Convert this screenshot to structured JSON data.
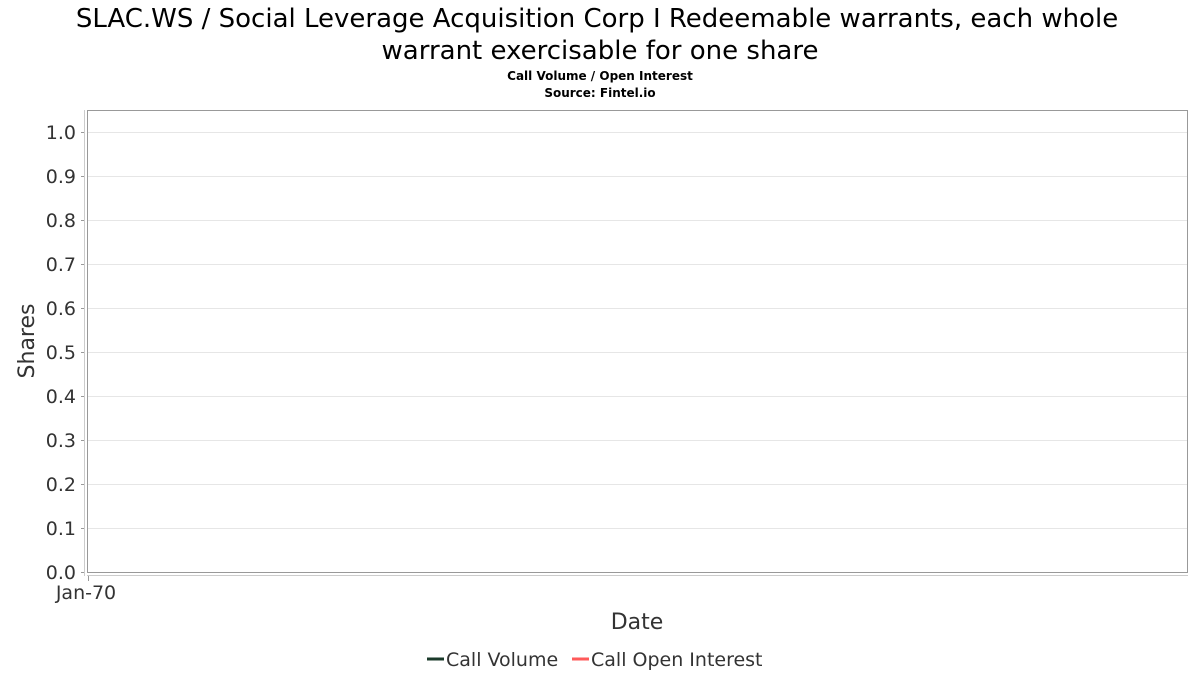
{
  "chart_data": {
    "type": "line",
    "title": [
      "SLAC.WS / Social Leverage Acquisition Corp I Redeemable warrants, each whole",
      "warrant exercisable for one share"
    ],
    "subtitle": [
      "Call Volume / Open Interest",
      "Source: Fintel.io"
    ],
    "xlabel": "Date",
    "ylabel": "Shares",
    "x_ticks": [
      "Jan-70"
    ],
    "y_ticks": [
      "0.0",
      "0.1",
      "0.2",
      "0.3",
      "0.4",
      "0.5",
      "0.6",
      "0.7",
      "0.8",
      "0.9",
      "1.0"
    ],
    "ylim": [
      0,
      1
    ],
    "grid": true,
    "legend_position": "bottom-center",
    "series": [
      {
        "name": "Call Volume",
        "color": "#1a3a2a",
        "x": [],
        "y": []
      },
      {
        "name": "Call Open Interest",
        "color": "#ff5a5a",
        "x": [],
        "y": []
      }
    ]
  }
}
